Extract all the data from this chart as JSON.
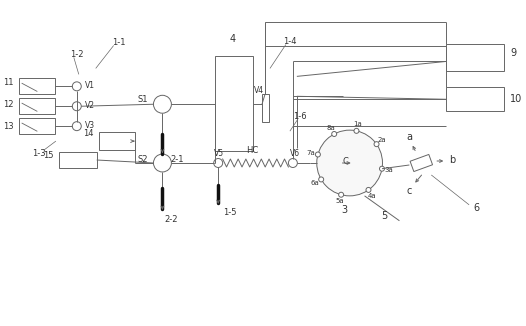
{
  "bg_color": "#ffffff",
  "line_color": "#666666",
  "figsize": [
    5.26,
    3.26
  ],
  "dpi": 100,
  "xlim": [
    0,
    526
  ],
  "ylim": [
    0,
    326
  ]
}
